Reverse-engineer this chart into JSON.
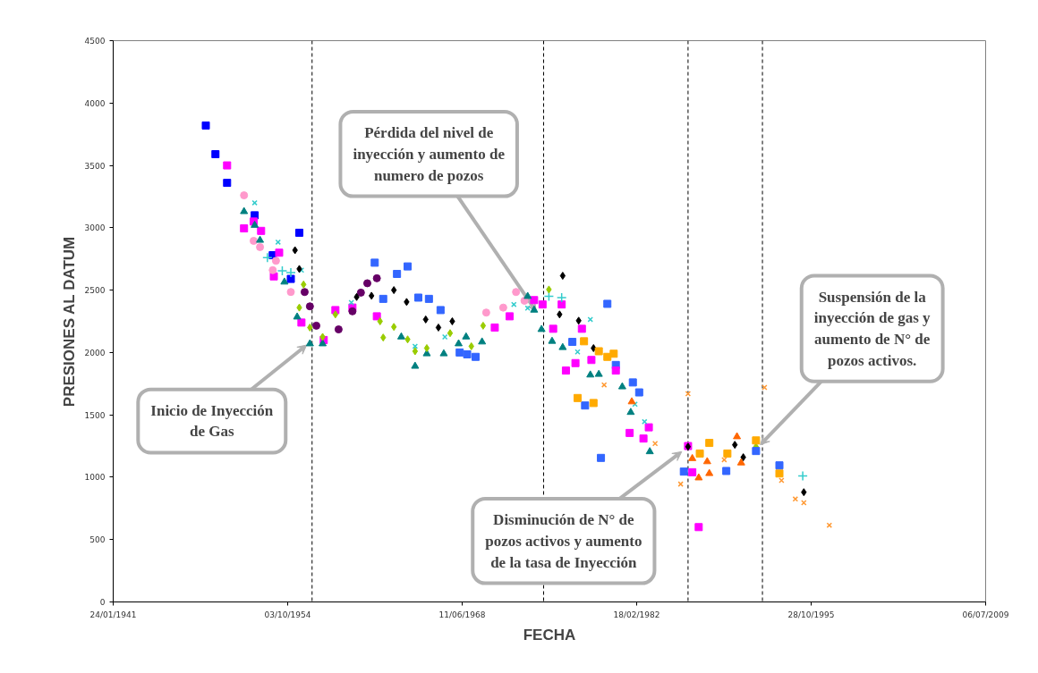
{
  "chart_data": {
    "type": "scatter",
    "xlabel": "FECHA",
    "ylabel": "PRESIONES AL DATUM",
    "xlim": [
      "1941-01-24",
      "2009-07-06"
    ],
    "xticks": [
      {
        "value": "1941-01-24",
        "label": "24/01/1941"
      },
      {
        "value": "1954-10-03",
        "label": "03/10/1954"
      },
      {
        "value": "1968-06-11",
        "label": "11/06/1968"
      },
      {
        "value": "1982-02-18",
        "label": "18/02/1982"
      },
      {
        "value": "1995-10-28",
        "label": "28/10/1995"
      },
      {
        "value": "2009-07-06",
        "label": "06/07/2009"
      }
    ],
    "ylim": [
      0,
      4500
    ],
    "yticks": [
      0,
      500,
      1000,
      1500,
      2000,
      2500,
      3000,
      3500,
      4000,
      4500
    ],
    "grid": false,
    "ref_lines": [
      {
        "axis": "x",
        "value": "1956-09",
        "color": "#000000",
        "line_style": "dashed"
      },
      {
        "axis": "x",
        "value": "1974-11",
        "color": "#000000",
        "line_style": "dashed"
      },
      {
        "axis": "x",
        "value": "1986-03",
        "color": "#000000",
        "line_style": "dashed"
      },
      {
        "axis": "x",
        "value": "1992-01",
        "color": "#000000",
        "line_style": "dashed"
      }
    ],
    "annotations": [
      {
        "text": "Inicio de Inyección\nde Gas",
        "x": "1956-04",
        "y": 2060
      },
      {
        "text": "Pérdida del nivel de\ninyección y aumento de\nnumero de pozos",
        "x": "1974-04",
        "y": 2330
      },
      {
        "text": "Disminución de N° de\npozos activos y aumento\nde la tasa de Inyección",
        "x": "1985-09",
        "y": 1205
      },
      {
        "text": "Suspensión de la\ninyección de gas y\naumento de N° de\npozos activos.",
        "x": "1991-11",
        "y": 1260
      }
    ],
    "series": [
      {
        "color": "#0000ff",
        "marker": "square",
        "x": [
          "1948-05",
          "1949-02",
          "1950-01",
          "1952-03",
          "1953-08",
          "1955-09",
          "1955-01"
        ],
        "values": [
          3820,
          3590,
          3360,
          3100,
          2780,
          2960,
          2590
        ]
      },
      {
        "color": "#3366ff",
        "marker": "square",
        "x": [
          "1961-08",
          "1963-05",
          "1964-03",
          "1962-04",
          "1965-01",
          "1965-11",
          "1966-10",
          "1968-04",
          "1968-11",
          "1969-07",
          "1979-11",
          "1977-02",
          "1980-07",
          "1981-11",
          "1982-05",
          "1978-02",
          "1979-05",
          "1985-11",
          "1989-03"
        ],
        "values": [
          2720,
          2630,
          2690,
          2430,
          2440,
          2430,
          2340,
          2000,
          1985,
          1965,
          2390,
          2085,
          1900,
          1760,
          1680,
          1575,
          1155,
          1045,
          1050
        ]
      },
      {
        "color": "#ff00ff",
        "marker": "square",
        "x": [
          "1950-01",
          "1951-05",
          "1952-02",
          "1952-09",
          "1954-02",
          "1953-09",
          "1955-11",
          "1957-08",
          "1958-07",
          "1959-11",
          "1961-10",
          "1971-01",
          "1972-03",
          "1974-02",
          "1974-10",
          "1976-04",
          "1975-08",
          "1977-11",
          "1977-05",
          "1976-08",
          "1978-08",
          "1980-07",
          "1981-08",
          "1982-09",
          "1983-02",
          "1986-03",
          "1986-07",
          "1987-01"
        ],
        "values": [
          3500,
          2995,
          3050,
          2975,
          2800,
          2610,
          2240,
          2100,
          2340,
          2360,
          2290,
          2200,
          2290,
          2420,
          2385,
          2385,
          2190,
          2190,
          1915,
          1855,
          1940,
          1855,
          1355,
          1310,
          1400,
          1250,
          1040,
          600
        ]
      },
      {
        "color": "#ff99cc",
        "marker": "circle",
        "x": [
          "1951-05",
          "1952-02",
          "1952-08",
          "1953-08",
          "1953-11",
          "1955-01",
          "1970-05",
          "1971-09",
          "1972-09",
          "1973-05"
        ],
        "values": [
          3260,
          2895,
          2845,
          2660,
          2735,
          2485,
          2320,
          2360,
          2485,
          2415
        ]
      },
      {
        "color": "#008080",
        "marker": "triangle",
        "x": [
          "1951-05",
          "1952-03",
          "1952-08",
          "1954-07",
          "1955-07",
          "1956-07",
          "1957-07",
          "1963-09",
          "1964-10",
          "1965-09",
          "1967-01",
          "1968-03",
          "1968-10",
          "1970-01",
          "1973-08",
          "1974-02",
          "1974-09",
          "1975-07",
          "1976-05",
          "1978-07",
          "1979-03",
          "1981-01",
          "1981-09",
          "1983-03"
        ],
        "values": [
          3130,
          3020,
          2900,
          2565,
          2285,
          2070,
          2070,
          2125,
          1890,
          1990,
          1990,
          2070,
          2125,
          2085,
          2450,
          2340,
          2185,
          2090,
          2040,
          1820,
          1825,
          1725,
          1520,
          1205
        ]
      },
      {
        "color": "#33cccc",
        "marker": "x",
        "x": [
          "1952-03",
          "1954-01",
          "1955-11",
          "1959-10",
          "1964-10",
          "1967-02",
          "1972-07",
          "1973-08",
          "1978-07",
          "1977-07",
          "1982-10",
          "1982-01"
        ],
        "values": [
          3200,
          2885,
          2660,
          2400,
          2050,
          2125,
          2385,
          2355,
          2265,
          2005,
          1445,
          1585
        ]
      },
      {
        "color": "#33cccc",
        "marker": "cross",
        "x": [
          "1953-03",
          "1954-05",
          "1955-01",
          "1975-04",
          "1976-04",
          "1995-03"
        ],
        "values": [
          2760,
          2655,
          2640,
          2450,
          2440,
          1010
        ]
      },
      {
        "color": "#000000",
        "marker": "diamond",
        "x": [
          "1955-05",
          "1955-09",
          "1976-05",
          "1976-02"
        ],
        "values": [
          2820,
          2670,
          2615,
          2305
        ]
      },
      {
        "color": "#660066",
        "marker": "circle",
        "x": [
          "1956-02",
          "1956-07",
          "1957-01",
          "1958-10",
          "1959-11",
          "1960-07",
          "1961-01",
          "1961-10"
        ],
        "values": [
          2485,
          2370,
          2215,
          2185,
          2330,
          2480,
          2555,
          2595
        ]
      },
      {
        "color": "#99cc00",
        "marker": "diamond",
        "x": [
          "1956-01",
          "1955-09",
          "1956-07",
          "1957-07",
          "1958-07",
          "1962-01",
          "1962-04",
          "1963-02",
          "1964-03",
          "1964-10",
          "1965-09",
          "1967-07",
          "1969-03",
          "1970-02",
          "1975-04",
          "1991-07"
        ],
        "values": [
          2545,
          2360,
          2200,
          2125,
          2305,
          2250,
          2120,
          2205,
          2105,
          2010,
          2035,
          2155,
          2050,
          2215,
          2505,
          1245
        ]
      },
      {
        "color": "#000000",
        "marker": "diamond",
        "x": [
          "1963-02",
          "1964-02",
          "1965-08",
          "1967-09",
          "1966-08",
          "1961-05",
          "1960-03",
          "1977-08",
          "1978-10",
          "1986-03",
          "1989-11",
          "1990-07",
          "1995-04"
        ],
        "values": [
          2500,
          2405,
          2265,
          2250,
          2200,
          2455,
          2445,
          2255,
          2035,
          1245,
          1260,
          1160,
          880
        ]
      },
      {
        "color": "#ffaa00",
        "marker": "square",
        "x": [
          "1978-01",
          "1979-03",
          "1979-11",
          "1980-05",
          "1977-07",
          "1978-10",
          "1987-02",
          "1987-11",
          "1989-04",
          "1991-07",
          "1993-05"
        ],
        "values": [
          2090,
          2010,
          1965,
          1990,
          1635,
          1595,
          1190,
          1275,
          1190,
          1295,
          1030
        ]
      },
      {
        "color": "#ff6600",
        "marker": "triangle",
        "x": [
          "1986-07",
          "1987-01",
          "1987-09",
          "1987-11",
          "1990-01",
          "1990-05",
          "1981-10"
        ],
        "values": [
          1150,
          995,
          1125,
          1030,
          1325,
          1115,
          1605
        ]
      },
      {
        "color": "#ff9933",
        "marker": "x",
        "x": [
          "1986-03",
          "1992-03",
          "1985-08",
          "1993-07",
          "1994-08",
          "1995-04",
          "1997-04",
          "1989-01",
          "1979-08",
          "1983-08"
        ],
        "values": [
          1670,
          1720,
          945,
          975,
          825,
          795,
          615,
          1140,
          1740,
          1270
        ]
      },
      {
        "color": "#3366ff",
        "marker": "square",
        "x": [
          "1993-05",
          "1991-07"
        ],
        "values": [
          1095,
          1210
        ]
      }
    ]
  }
}
